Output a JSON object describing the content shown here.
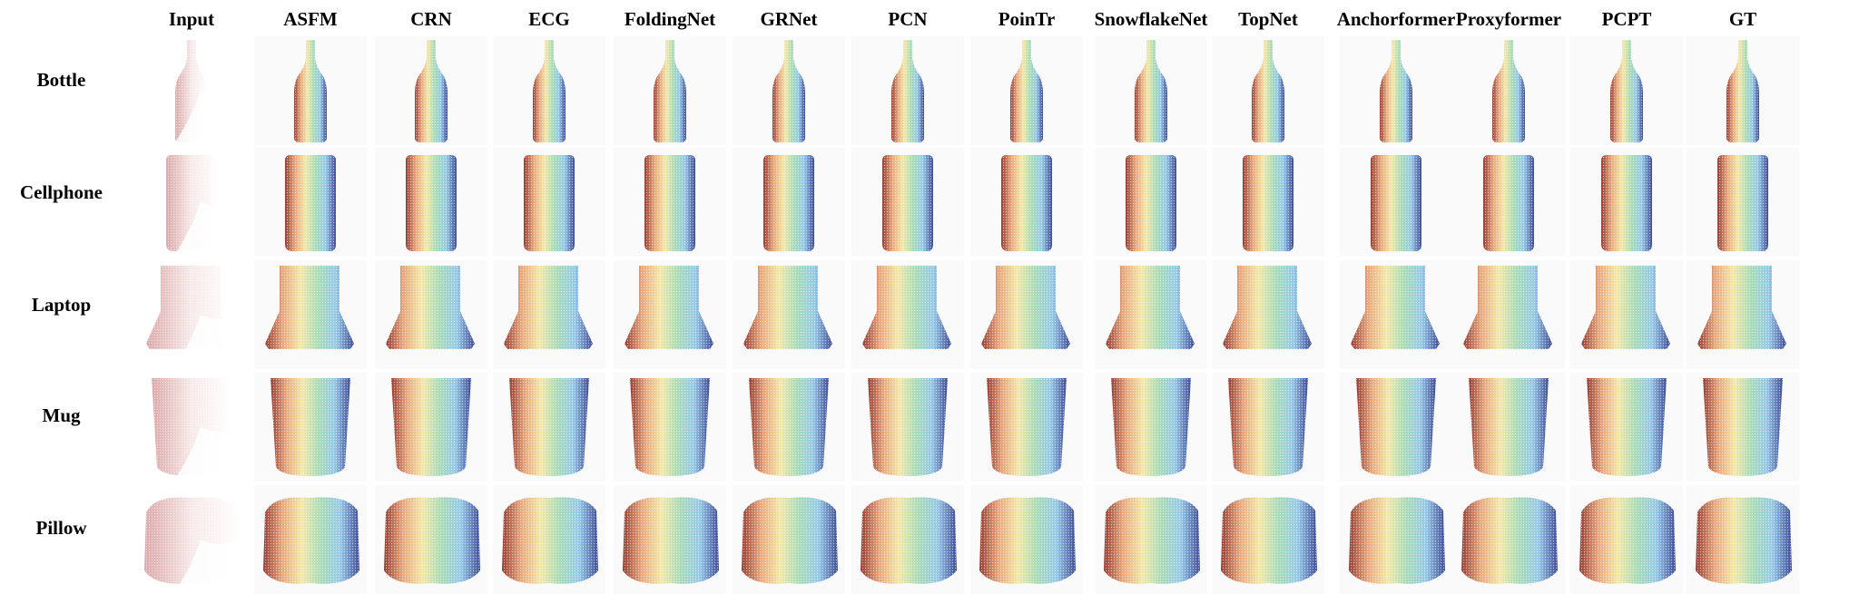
{
  "figure": {
    "columns": [
      "Input",
      "ASFM",
      "CRN",
      "ECG",
      "FoldingNet",
      "GRNet",
      "PCN",
      "PoinTr",
      "SnowflakeNet",
      "TopNet",
      "Anchorformer",
      "Proxyformer",
      "PCPT",
      "GT"
    ],
    "rows": [
      "Bottle",
      "Cellphone",
      "Laptop",
      "Mug",
      "Pillow"
    ],
    "shape_icons": [
      "bottle-shape",
      "cellphone-shape",
      "laptop-shape",
      "mug-shape",
      "pillow-shape"
    ],
    "colormap": [
      "#8b2a1e",
      "#e8a070",
      "#f2e6a0",
      "#9fd8b0",
      "#8cc4e8",
      "#2d3a8c"
    ],
    "input_colors": [
      "#c06060",
      "#f0d8d8",
      "#ffffff"
    ]
  }
}
